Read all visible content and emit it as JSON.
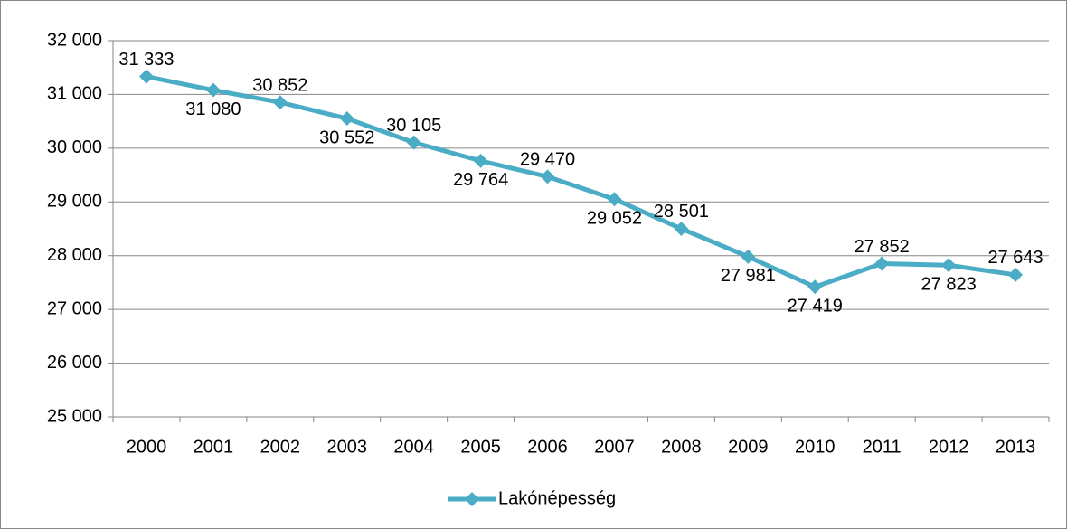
{
  "chart_data": {
    "type": "line",
    "categories": [
      "2000",
      "2001",
      "2002",
      "2003",
      "2004",
      "2005",
      "2006",
      "2007",
      "2008",
      "2009",
      "2010",
      "2011",
      "2012",
      "2013"
    ],
    "series": [
      {
        "name": "Lakónépesség",
        "color": "#4bacc6",
        "values": [
          31333,
          31080,
          30852,
          30552,
          30105,
          29764,
          29470,
          29052,
          28501,
          27981,
          27419,
          27852,
          27823,
          27643
        ],
        "value_labels": [
          "31 333",
          "31 080",
          "30 852",
          "30 552",
          "30 105",
          "29 764",
          "29 470",
          "29 052",
          "28 501",
          "27 981",
          "27 419",
          "27 852",
          "27 823",
          "27 643"
        ]
      }
    ],
    "ylim": [
      25000,
      32000
    ],
    "yticks": [
      {
        "value": 25000,
        "label": "25 000"
      },
      {
        "value": 26000,
        "label": "26 000"
      },
      {
        "value": 27000,
        "label": "27 000"
      },
      {
        "value": 28000,
        "label": "28 000"
      },
      {
        "value": 29000,
        "label": "29 000"
      },
      {
        "value": 30000,
        "label": "30 000"
      },
      {
        "value": 31000,
        "label": "31 000"
      },
      {
        "value": 32000,
        "label": "32 000"
      }
    ],
    "grid": true,
    "legend": "bottom"
  }
}
